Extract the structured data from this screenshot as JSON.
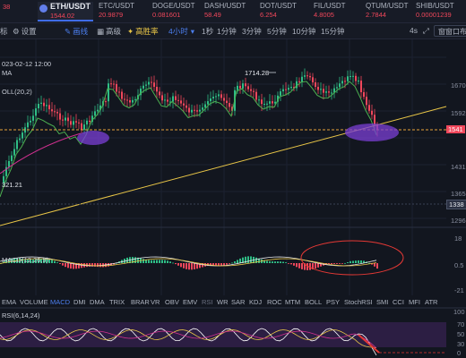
{
  "ticker": [
    {
      "symbol": "",
      "price": "38",
      "dir": "down",
      "active": false
    },
    {
      "symbol": "ETH/USDT",
      "price": "1544.02",
      "dir": "down",
      "active": true
    },
    {
      "symbol": "ETC/USDT",
      "price": "20.9879",
      "dir": "down",
      "active": false
    },
    {
      "symbol": "DOGE/USDT",
      "price": "0.081601",
      "dir": "down",
      "active": false
    },
    {
      "symbol": "DASH/USDT",
      "price": "58.49",
      "dir": "down",
      "active": false
    },
    {
      "symbol": "DOT/USDT",
      "price": "6.254",
      "dir": "down",
      "active": false
    },
    {
      "symbol": "FIL/USDT",
      "price": "4.8005",
      "dir": "down",
      "active": false
    },
    {
      "symbol": "QTUM/USDT",
      "price": "2.7844",
      "dir": "down",
      "active": false
    },
    {
      "symbol": "SHIB/USDT",
      "price": "0.00001239",
      "dir": "down",
      "active": false
    }
  ],
  "toolbar": {
    "chart_label": "标",
    "settings_label": "设置",
    "draw_label": "画线",
    "advanced_label": "高级",
    "highrate_label": "高胜率",
    "interval_selected": "4小时",
    "intervals": [
      "1秒",
      "1分钟",
      "3分钟",
      "5分钟",
      "10分钟",
      "15分钟"
    ],
    "right_interval": "4s",
    "right_button": "窗窗口布局"
  },
  "chart": {
    "timestamp": "023-02-12 12:00",
    "overlay_labels": [
      "MA",
      "OLL(20,2)"
    ],
    "high_label": "1714.28",
    "low_label": "321.21",
    "price_axis": [
      "1670",
      "1592",
      "1541",
      "1431",
      "1365",
      "1338",
      "1296"
    ],
    "current_price": "1541",
    "crosshair_price": "1338",
    "macd_label": "MACD(12,26,9)",
    "macd_axis": [
      "18",
      "0.5",
      "-21"
    ],
    "rsi_label": "RSI(6,14,24)",
    "rsi_axis": [
      "100",
      "70",
      "50",
      "30",
      "0"
    ]
  },
  "indicators": [
    {
      "label": "EMA",
      "state": "normal"
    },
    {
      "label": "VOLUME",
      "state": "normal"
    },
    {
      "label": "MACD",
      "state": "selected"
    },
    {
      "label": "DMI",
      "state": "normal"
    },
    {
      "label": "DMA",
      "state": "normal"
    },
    {
      "label": "TRIX",
      "state": "normal"
    },
    {
      "label": "BRAR",
      "state": "normal"
    },
    {
      "label": "VR",
      "state": "normal"
    },
    {
      "label": "OBV",
      "state": "normal"
    },
    {
      "label": "EMV",
      "state": "normal"
    },
    {
      "label": "RSI",
      "state": "dim"
    },
    {
      "label": "WR",
      "state": "normal"
    },
    {
      "label": "SAR",
      "state": "normal"
    },
    {
      "label": "KDJ",
      "state": "normal"
    },
    {
      "label": "ROC",
      "state": "normal"
    },
    {
      "label": "MTM",
      "state": "normal"
    },
    {
      "label": "BOLL",
      "state": "normal"
    },
    {
      "label": "PSY",
      "state": "normal"
    },
    {
      "label": "StochRSI",
      "state": "normal"
    },
    {
      "label": "SMI",
      "state": "normal"
    },
    {
      "label": "CCI",
      "state": "normal"
    },
    {
      "label": "MFI",
      "state": "normal"
    },
    {
      "label": "ATR",
      "state": "normal"
    }
  ],
  "colors": {
    "background": "#12161f",
    "up": "#2fbd85",
    "down": "#f0475b",
    "accent": "#4c7ff0",
    "ma_line": "#4caf50",
    "trend_line": "#e8c547",
    "ellipse": "#7b3fd6",
    "annotation": "#e53935"
  }
}
